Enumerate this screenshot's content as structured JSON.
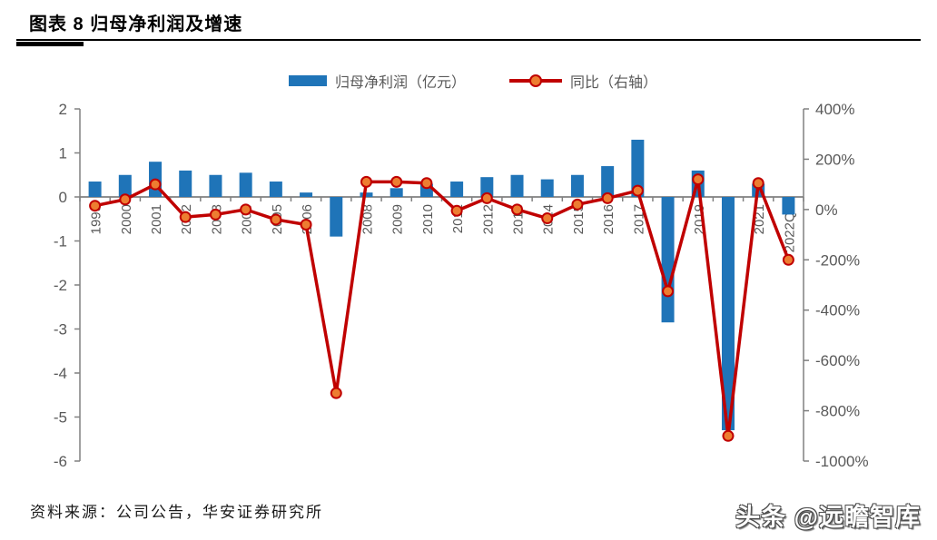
{
  "header": {
    "title": "图表 8 归母净利润及增速"
  },
  "legend": {
    "bar_label": "归母净利润（亿元）",
    "line_label": "同比（右轴）"
  },
  "colors": {
    "bar_blue": "#1F74B8",
    "line_red": "#C00000",
    "marker_orange": "#ED7D31",
    "axis_gray": "#808080",
    "tick_text_gray": "#595959"
  },
  "chart_data": {
    "type": "bar",
    "title": "图表 8 归母净利润及增速",
    "categories": [
      "1999",
      "2000",
      "2001",
      "2002",
      "2003",
      "2004",
      "2005",
      "2006",
      "2007",
      "2008",
      "2009",
      "2010",
      "2011",
      "2012",
      "2013",
      "2014",
      "2015",
      "2016",
      "2017",
      "2018",
      "2019",
      "2020",
      "2021",
      "2022Q1"
    ],
    "series": [
      {
        "name": "归母净利润（亿元）",
        "type": "bar",
        "axis": "left",
        "color": "#1F74B8",
        "values": [
          0.35,
          0.5,
          0.8,
          0.6,
          0.5,
          0.55,
          0.35,
          0.1,
          -0.9,
          0.1,
          0.2,
          0.3,
          0.35,
          0.45,
          0.5,
          0.4,
          0.5,
          0.7,
          1.3,
          -2.85,
          0.6,
          -5.3,
          0.3,
          -0.4
        ]
      },
      {
        "name": "同比（右轴）",
        "type": "line",
        "axis": "right",
        "color": "#C00000",
        "marker_color": "#ED7D31",
        "values": [
          15,
          40,
          100,
          -30,
          -20,
          0,
          -40,
          -60,
          -730,
          110,
          110,
          105,
          -5,
          45,
          0,
          -35,
          20,
          45,
          75,
          -325,
          120,
          -900,
          105,
          -200
        ]
      }
    ],
    "left_axis": {
      "min": -6,
      "max": 2,
      "ticks": [
        "2",
        "1",
        "0",
        "-1",
        "-2",
        "-3",
        "-4",
        "-5",
        "-6"
      ]
    },
    "right_axis": {
      "min": -1000,
      "max": 400,
      "ticks": [
        "400%",
        "200%",
        "0%",
        "-200%",
        "-400%",
        "-600%",
        "-800%",
        "-1000%"
      ]
    },
    "grid": false,
    "legend_position": "top"
  },
  "footer": {
    "source": "资料来源：公司公告，华安证券研究所",
    "watermark": "头条 @远瞻智库"
  }
}
